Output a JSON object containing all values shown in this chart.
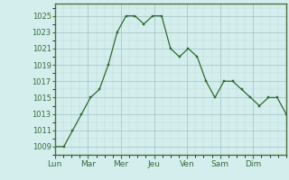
{
  "x_labels": [
    "Lun",
    "Mar",
    "Mer",
    "Jeu",
    "Ven",
    "Sam",
    "Dim"
  ],
  "y_data": [
    1009,
    1009,
    1011,
    1013,
    1015,
    1016,
    1019,
    1023,
    1025,
    1025,
    1024,
    1025,
    1025,
    1021,
    1020,
    1021,
    1020,
    1017,
    1015,
    1017,
    1017,
    1016,
    1015,
    1014,
    1015,
    1015,
    1013
  ],
  "line_color": "#2d6a2d",
  "marker_color": "#2d6a2d",
  "bg_color": "#d4eeee",
  "grid_color_major": "#a8c8c8",
  "grid_color_minor": "#bcd8d8",
  "axis_label_color": "#3a6b3a",
  "spine_color": "#4a7040",
  "ylim": [
    1008,
    1026.5
  ],
  "yticks": [
    1009,
    1011,
    1013,
    1015,
    1017,
    1019,
    1021,
    1023,
    1025
  ],
  "ylabel_fontsize": 6.0,
  "xlabel_fontsize": 6.5
}
